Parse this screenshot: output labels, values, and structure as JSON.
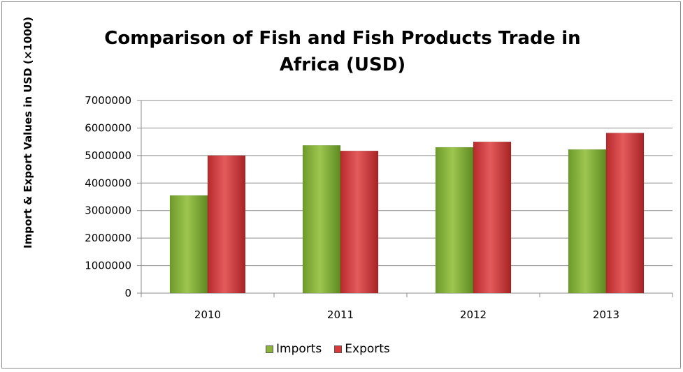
{
  "chart_data": {
    "type": "bar",
    "title": "Comparison of Fish and Fish Products Trade in Africa (USD)",
    "xlabel": "",
    "ylabel": "Import & Export Values in USD (×1000)",
    "categories": [
      "2010",
      "2011",
      "2012",
      "2013"
    ],
    "series": [
      {
        "name": "Imports",
        "color": "#8cb33c",
        "values": [
          3550000,
          5370000,
          5300000,
          5220000
        ]
      },
      {
        "name": "Exports",
        "color": "#d9393b",
        "values": [
          5000000,
          5170000,
          5500000,
          5820000
        ]
      }
    ],
    "ylim": [
      0,
      7000000
    ],
    "yticks": [
      "0",
      "1000000",
      "2000000",
      "3000000",
      "4000000",
      "5000000",
      "6000000",
      "7000000"
    ],
    "grid": true,
    "legend_position": "bottom"
  }
}
